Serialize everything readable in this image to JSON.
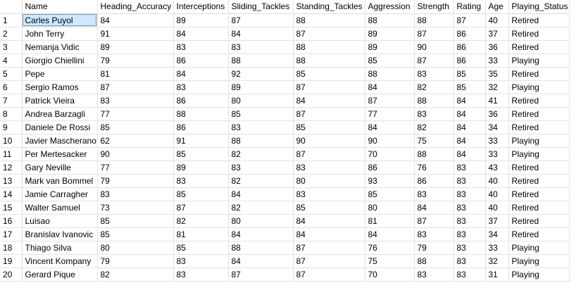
{
  "grid": {
    "columns": [
      "Name",
      "Heading_Accuracy",
      "Interceptions",
      "Sliding_Tackles",
      "Standing_Tackles",
      "Aggression",
      "Strength",
      "Rating",
      "Age",
      "Playing_Status"
    ],
    "rows": [
      [
        "1",
        "Carles Puyol",
        "84",
        "89",
        "87",
        "88",
        "88",
        "88",
        "87",
        "40",
        "Retired"
      ],
      [
        "2",
        "John Terry",
        "91",
        "84",
        "84",
        "87",
        "89",
        "87",
        "86",
        "37",
        "Retired"
      ],
      [
        "3",
        "Nemanja Vidic",
        "89",
        "83",
        "83",
        "88",
        "89",
        "90",
        "86",
        "36",
        "Retired"
      ],
      [
        "4",
        "Giorgio Chiellini",
        "79",
        "86",
        "88",
        "88",
        "85",
        "87",
        "86",
        "33",
        "Playing"
      ],
      [
        "5",
        "Pepe",
        "81",
        "84",
        "92",
        "85",
        "88",
        "83",
        "85",
        "35",
        "Retired"
      ],
      [
        "6",
        "Sergio Ramos",
        "87",
        "83",
        "89",
        "87",
        "84",
        "82",
        "85",
        "32",
        "Playing"
      ],
      [
        "7",
        "Patrick Vieira",
        "83",
        "86",
        "80",
        "84",
        "87",
        "88",
        "84",
        "41",
        "Retired"
      ],
      [
        "8",
        "Andrea Barzagli",
        "77",
        "88",
        "85",
        "87",
        "77",
        "83",
        "84",
        "36",
        "Retired"
      ],
      [
        "9",
        "Daniele De Rossi",
        "85",
        "86",
        "83",
        "85",
        "84",
        "82",
        "84",
        "34",
        "Retired"
      ],
      [
        "10",
        "Javier Mascherano",
        "62",
        "91",
        "88",
        "90",
        "90",
        "75",
        "84",
        "33",
        "Playing"
      ],
      [
        "11",
        "Per Mertesacker",
        "90",
        "85",
        "82",
        "87",
        "70",
        "88",
        "84",
        "33",
        "Playing"
      ],
      [
        "12",
        "Gary Neville",
        "77",
        "89",
        "83",
        "83",
        "86",
        "76",
        "83",
        "43",
        "Retired"
      ],
      [
        "13",
        "Mark van Bommel",
        "79",
        "83",
        "82",
        "80",
        "93",
        "86",
        "83",
        "40",
        "Retired"
      ],
      [
        "14",
        "Jamie Carragher",
        "83",
        "85",
        "84",
        "83",
        "85",
        "83",
        "83",
        "40",
        "Retired"
      ],
      [
        "15",
        "Walter Samuel",
        "73",
        "87",
        "82",
        "85",
        "80",
        "84",
        "83",
        "40",
        "Retired"
      ],
      [
        "16",
        "Luisao",
        "85",
        "82",
        "80",
        "84",
        "81",
        "87",
        "83",
        "37",
        "Retired"
      ],
      [
        "17",
        "Branislav Ivanovic",
        "85",
        "81",
        "84",
        "84",
        "84",
        "83",
        "83",
        "34",
        "Retired"
      ],
      [
        "18",
        "Thiago Silva",
        "80",
        "85",
        "88",
        "87",
        "76",
        "79",
        "83",
        "33",
        "Playing"
      ],
      [
        "19",
        "Vincent Kompany",
        "79",
        "83",
        "84",
        "87",
        "75",
        "88",
        "83",
        "32",
        "Playing"
      ],
      [
        "20",
        "Gerard Pique",
        "82",
        "83",
        "87",
        "87",
        "70",
        "83",
        "83",
        "31",
        "Playing"
      ]
    ],
    "selected_cell": {
      "row": 0,
      "col": 0
    }
  }
}
